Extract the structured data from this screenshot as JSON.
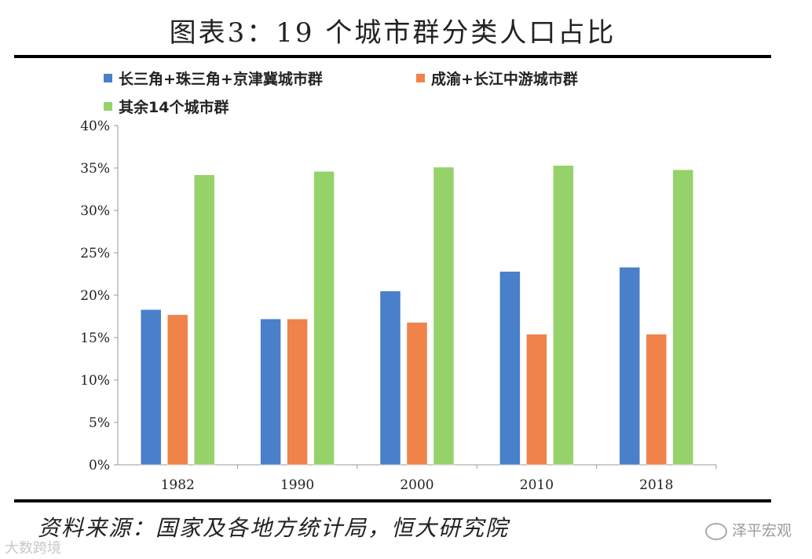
{
  "header": {
    "title": "图表3：19 个城市群分类人口占比"
  },
  "footer": {
    "source": "资料来源：国家及各地方统计局，恒大研究院",
    "watermark_right": "泽平宏观",
    "watermark_left": "大数跨境"
  },
  "chart_data": {
    "type": "bar",
    "categories": [
      "1982",
      "1990",
      "2000",
      "2010",
      "2018"
    ],
    "series": [
      {
        "name": "长三角+珠三角+京津冀城市群",
        "values": [
          18.3,
          17.2,
          20.5,
          22.8,
          23.3
        ],
        "color": "#4a7fc9"
      },
      {
        "name": "成渝+长江中游城市群",
        "values": [
          17.7,
          17.2,
          16.8,
          15.4,
          15.4
        ],
        "color": "#f0834a"
      },
      {
        "name": "其余14个城市群",
        "values": [
          34.2,
          34.6,
          35.1,
          35.3,
          34.8
        ],
        "color": "#95d26a"
      }
    ],
    "ylim": [
      0,
      40
    ],
    "yticks": [
      "0%",
      "5%",
      "10%",
      "15%",
      "20%",
      "25%",
      "30%",
      "35%",
      "40%"
    ],
    "legend_position": "top-left",
    "grid": false
  }
}
